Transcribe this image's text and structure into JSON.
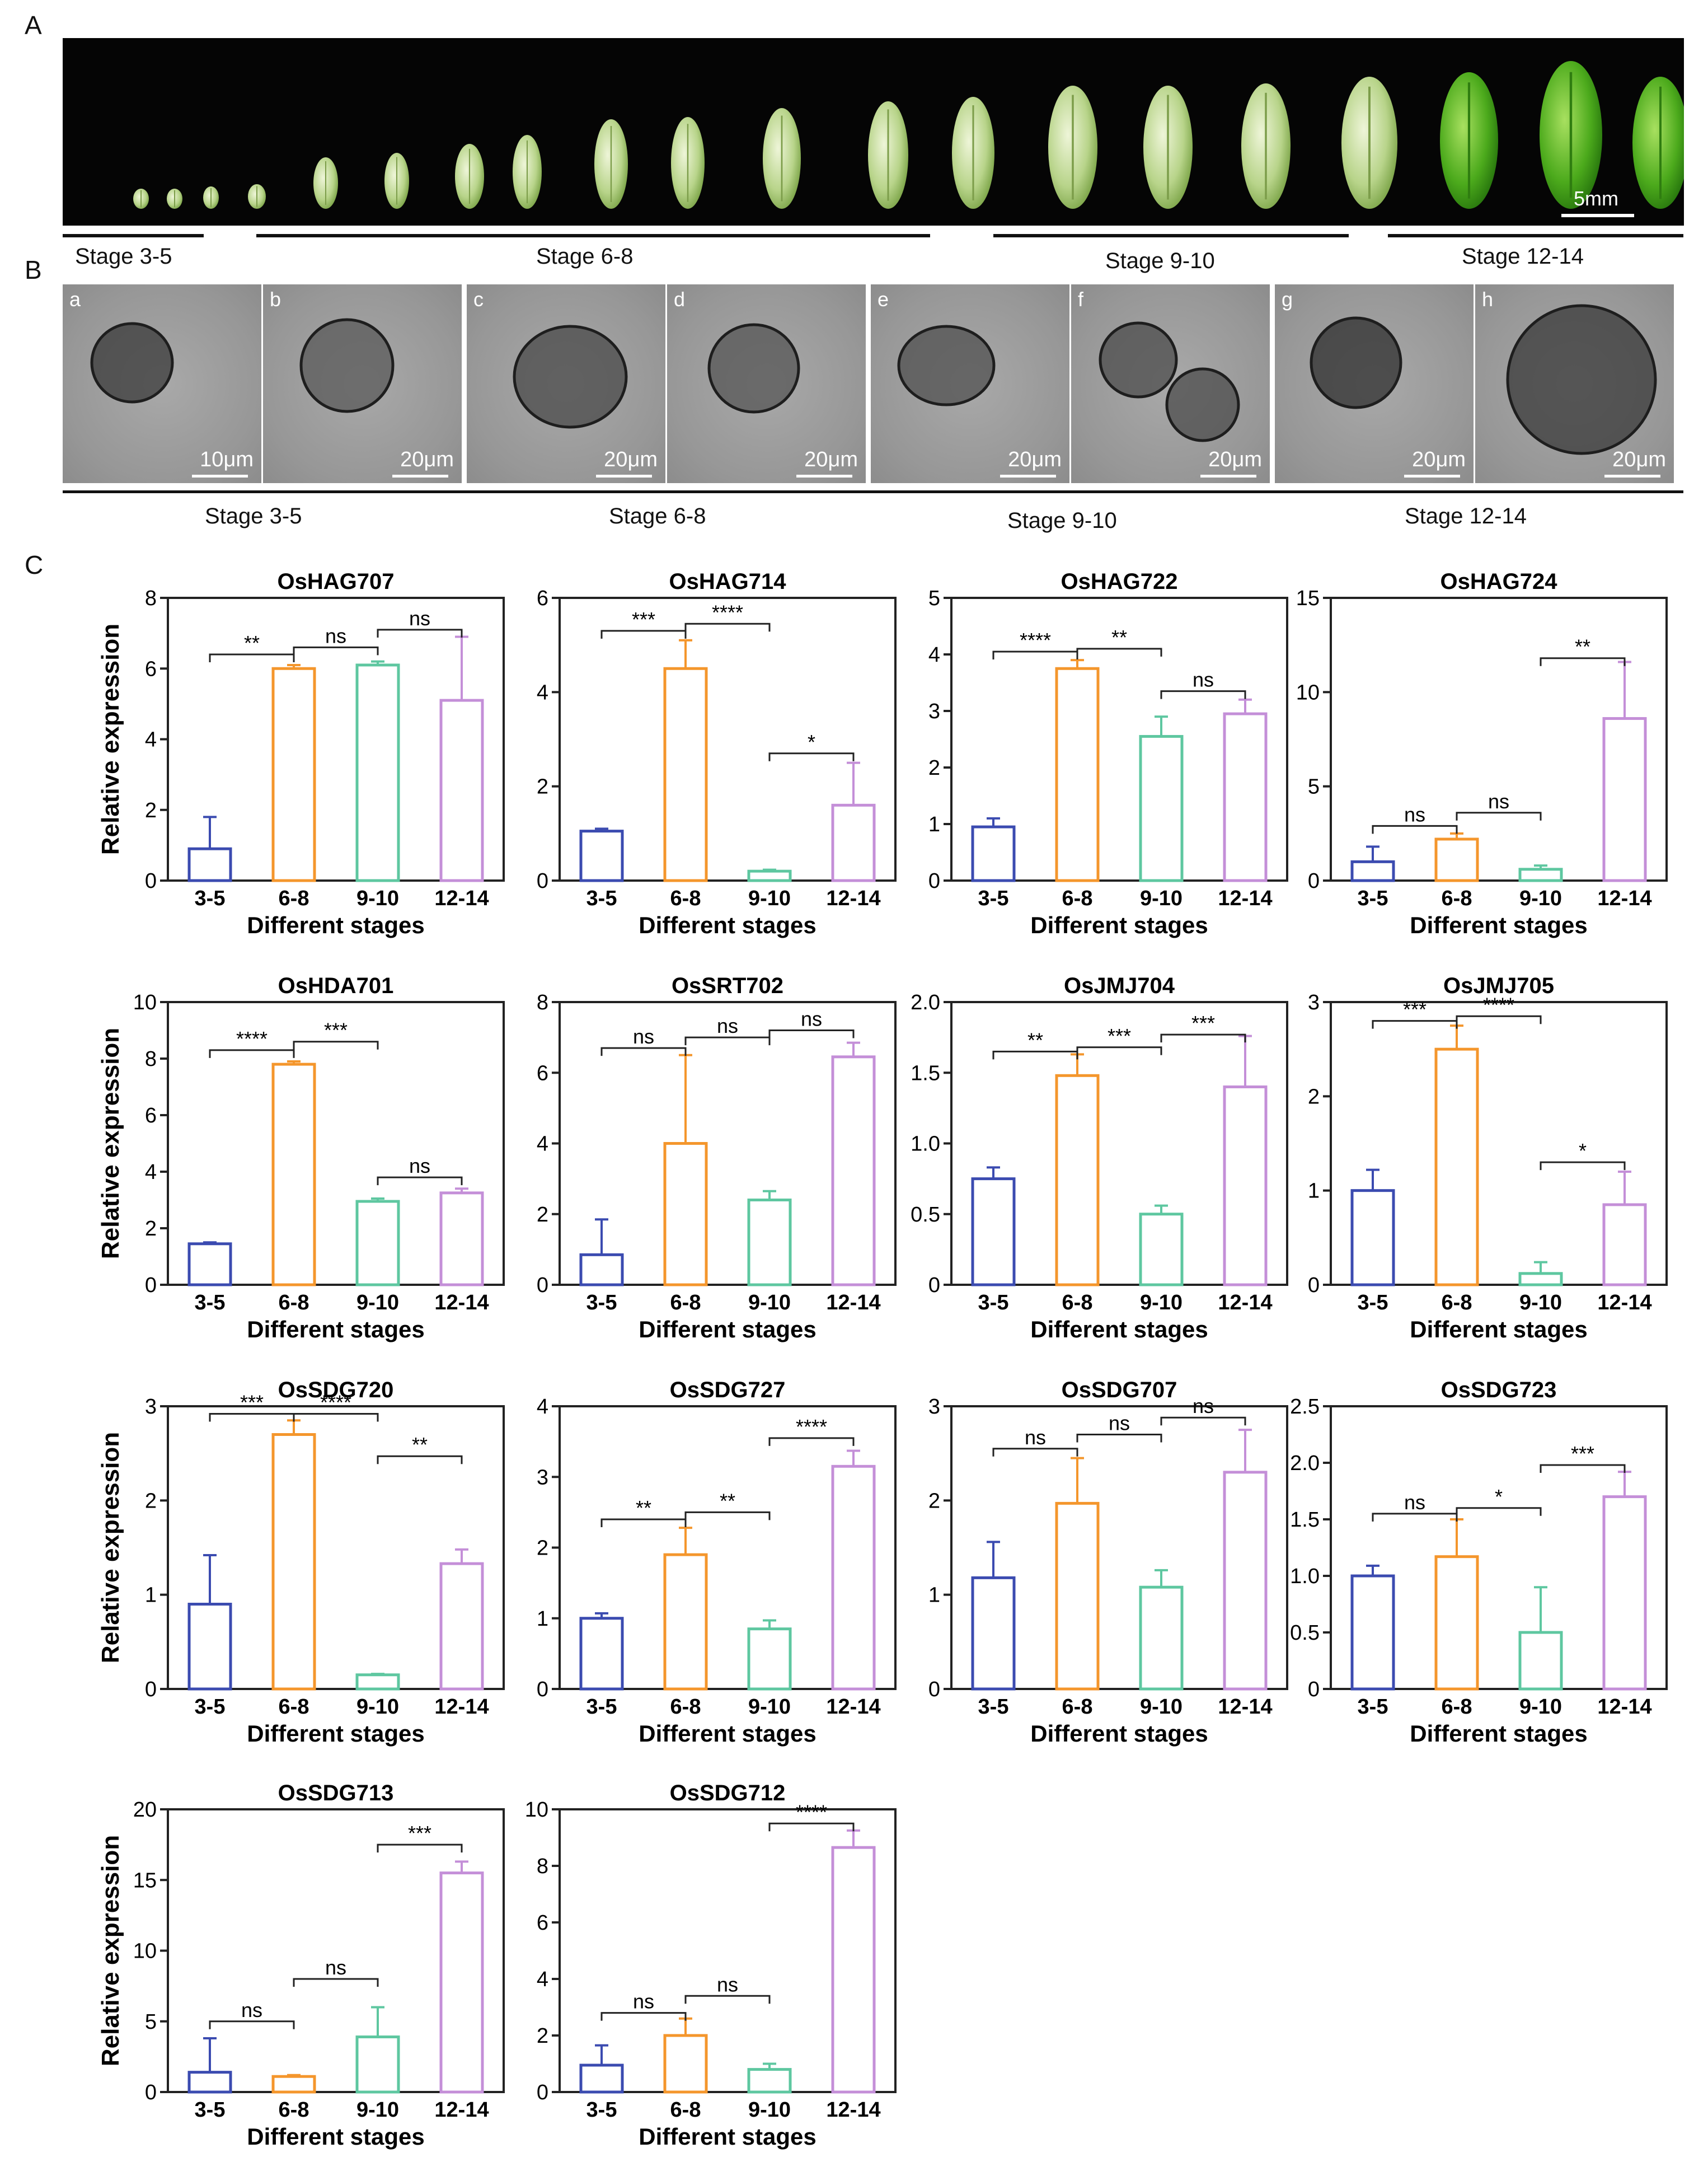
{
  "panels": {
    "a": "A",
    "b": "B",
    "c": "C"
  },
  "strip": {
    "scale_label": "5mm",
    "stage_labels": [
      "Stage 3-5",
      "Stage 6-8",
      "Stage 9-10",
      "Stage 12-14"
    ]
  },
  "micrographs": {
    "items": [
      {
        "letter": "a",
        "scale": "10μm"
      },
      {
        "letter": "b",
        "scale": "20μm"
      },
      {
        "letter": "c",
        "scale": "20μm"
      },
      {
        "letter": "d",
        "scale": "20μm"
      },
      {
        "letter": "e",
        "scale": "20μm"
      },
      {
        "letter": "f",
        "scale": "20μm"
      },
      {
        "letter": "g",
        "scale": "20μm"
      },
      {
        "letter": "h",
        "scale": "20μm"
      }
    ],
    "stage_labels": [
      "Stage 3-5",
      "Stage 6-8",
      "Stage 9-10",
      "Stage 12-14"
    ]
  },
  "colors": {
    "s1": "#3b4bb0",
    "s2": "#f4962c",
    "s3": "#5ec7a0",
    "s4": "#c48fd8"
  },
  "chart_data": [
    {
      "type": "bar",
      "title": "OsHAG707",
      "categories": [
        "3-5",
        "6-8",
        "9-10",
        "12-14"
      ],
      "values": [
        0.9,
        6.0,
        6.1,
        5.1
      ],
      "errors": [
        0.9,
        0.1,
        0.1,
        1.8
      ],
      "ylim": [
        0,
        8
      ],
      "yticks": [
        "0",
        "2",
        "4",
        "6",
        "8"
      ],
      "xlabel": "Different stages",
      "ylabel": "Relative expression",
      "significance": [
        {
          "from": 0,
          "to": 1,
          "label": "**",
          "y": 6.4
        },
        {
          "from": 1,
          "to": 2,
          "label": "ns",
          "y": 6.6
        },
        {
          "from": 2,
          "to": 3,
          "label": "ns",
          "y": 7.1
        }
      ]
    },
    {
      "type": "bar",
      "title": "OsHAG714",
      "categories": [
        "3-5",
        "6-8",
        "9-10",
        "12-14"
      ],
      "values": [
        1.05,
        4.5,
        0.2,
        1.6
      ],
      "errors": [
        0.05,
        0.6,
        0.03,
        0.9
      ],
      "ylim": [
        0,
        6
      ],
      "yticks": [
        "0",
        "2",
        "4",
        "6"
      ],
      "xlabel": "Different stages",
      "ylabel": "",
      "significance": [
        {
          "from": 0,
          "to": 1,
          "label": "***",
          "y": 5.3
        },
        {
          "from": 1,
          "to": 2,
          "label": "****",
          "y": 5.45
        },
        {
          "from": 2,
          "to": 3,
          "label": "*",
          "y": 2.7
        }
      ]
    },
    {
      "type": "bar",
      "title": "OsHAG722",
      "categories": [
        "3-5",
        "6-8",
        "9-10",
        "12-14"
      ],
      "values": [
        0.95,
        3.75,
        2.55,
        2.95
      ],
      "errors": [
        0.15,
        0.15,
        0.35,
        0.25
      ],
      "ylim": [
        0,
        5
      ],
      "yticks": [
        "0",
        "1",
        "2",
        "3",
        "4",
        "5"
      ],
      "xlabel": "Different stages",
      "ylabel": "",
      "significance": [
        {
          "from": 0,
          "to": 1,
          "label": "****",
          "y": 4.05
        },
        {
          "from": 1,
          "to": 2,
          "label": "**",
          "y": 4.1
        },
        {
          "from": 2,
          "to": 3,
          "label": "ns",
          "y": 3.35
        }
      ]
    },
    {
      "type": "bar",
      "title": "OsHAG724",
      "categories": [
        "3-5",
        "6-8",
        "9-10",
        "12-14"
      ],
      "values": [
        1.0,
        2.2,
        0.6,
        8.6
      ],
      "errors": [
        0.8,
        0.3,
        0.2,
        3.0
      ],
      "ylim": [
        0,
        15
      ],
      "yticks": [
        "0",
        "5",
        "10",
        "15"
      ],
      "xlabel": "Different stages",
      "ylabel": "",
      "significance": [
        {
          "from": 0,
          "to": 1,
          "label": "ns",
          "y": 2.9
        },
        {
          "from": 1,
          "to": 2,
          "label": "ns",
          "y": 3.6
        },
        {
          "from": 2,
          "to": 3,
          "label": "**",
          "y": 11.8
        }
      ]
    },
    {
      "type": "bar",
      "title": "OsHDA701",
      "categories": [
        "3-5",
        "6-8",
        "9-10",
        "12-14"
      ],
      "values": [
        1.45,
        7.8,
        2.95,
        3.25
      ],
      "errors": [
        0.05,
        0.1,
        0.1,
        0.15
      ],
      "ylim": [
        0,
        10
      ],
      "yticks": [
        "0",
        "2",
        "4",
        "6",
        "8",
        "10"
      ],
      "xlabel": "Different stages",
      "ylabel": "Relative expression",
      "significance": [
        {
          "from": 0,
          "to": 1,
          "label": "****",
          "y": 8.3
        },
        {
          "from": 1,
          "to": 2,
          "label": "***",
          "y": 8.6
        },
        {
          "from": 2,
          "to": 3,
          "label": "ns",
          "y": 3.8
        }
      ]
    },
    {
      "type": "bar",
      "title": "OsSRT702",
      "categories": [
        "3-5",
        "6-8",
        "9-10",
        "12-14"
      ],
      "values": [
        0.85,
        4.0,
        2.4,
        6.45
      ],
      "errors": [
        1.0,
        2.5,
        0.25,
        0.4
      ],
      "ylim": [
        0,
        8
      ],
      "yticks": [
        "0",
        "2",
        "4",
        "6",
        "8"
      ],
      "xlabel": "Different stages",
      "ylabel": "",
      "significance": [
        {
          "from": 0,
          "to": 1,
          "label": "ns",
          "y": 6.7
        },
        {
          "from": 1,
          "to": 2,
          "label": "ns",
          "y": 7.0
        },
        {
          "from": 2,
          "to": 3,
          "label": "ns",
          "y": 7.2
        }
      ]
    },
    {
      "type": "bar",
      "title": "OsJMJ704",
      "categories": [
        "3-5",
        "6-8",
        "9-10",
        "12-14"
      ],
      "values": [
        0.75,
        1.48,
        0.5,
        1.4
      ],
      "errors": [
        0.08,
        0.15,
        0.06,
        0.36
      ],
      "ylim": [
        0,
        2.0
      ],
      "yticks": [
        "0",
        "0.5",
        "1.0",
        "1.5",
        "2.0"
      ],
      "xlabel": "Different stages",
      "ylabel": "",
      "significance": [
        {
          "from": 0,
          "to": 1,
          "label": "**",
          "y": 1.65
        },
        {
          "from": 1,
          "to": 2,
          "label": "***",
          "y": 1.68
        },
        {
          "from": 2,
          "to": 3,
          "label": "***",
          "y": 1.77
        }
      ]
    },
    {
      "type": "bar",
      "title": "OsJMJ705",
      "categories": [
        "3-5",
        "6-8",
        "9-10",
        "12-14"
      ],
      "values": [
        1.0,
        2.5,
        0.12,
        0.85
      ],
      "errors": [
        0.22,
        0.25,
        0.12,
        0.35
      ],
      "ylim": [
        0,
        3
      ],
      "yticks": [
        "0",
        "1",
        "2",
        "3"
      ],
      "xlabel": "Different stages",
      "ylabel": "",
      "significance": [
        {
          "from": 0,
          "to": 1,
          "label": "***",
          "y": 2.8
        },
        {
          "from": 1,
          "to": 2,
          "label": "****",
          "y": 2.85
        },
        {
          "from": 2,
          "to": 3,
          "label": "*",
          "y": 1.3
        }
      ]
    },
    {
      "type": "bar",
      "title": "OsSDG720",
      "categories": [
        "3-5",
        "6-8",
        "9-10",
        "12-14"
      ],
      "values": [
        0.9,
        2.7,
        0.15,
        1.33
      ],
      "errors": [
        0.52,
        0.15,
        0.01,
        0.15
      ],
      "ylim": [
        0,
        3
      ],
      "yticks": [
        "0",
        "1",
        "2",
        "3"
      ],
      "xlabel": "Different stages",
      "ylabel": "Relative expression",
      "significance": [
        {
          "from": 0,
          "to": 1,
          "label": "***",
          "y": 2.92
        },
        {
          "from": 1,
          "to": 2,
          "label": "****",
          "y": 2.92
        },
        {
          "from": 2,
          "to": 3,
          "label": "**",
          "y": 2.47
        }
      ]
    },
    {
      "type": "bar",
      "title": "OsSDG727",
      "categories": [
        "3-5",
        "6-8",
        "9-10",
        "12-14"
      ],
      "values": [
        1.0,
        1.9,
        0.85,
        3.15
      ],
      "errors": [
        0.07,
        0.38,
        0.12,
        0.22
      ],
      "ylim": [
        0,
        4
      ],
      "yticks": [
        "0",
        "1",
        "2",
        "3",
        "4"
      ],
      "xlabel": "Different stages",
      "ylabel": "",
      "significance": [
        {
          "from": 0,
          "to": 1,
          "label": "**",
          "y": 2.4
        },
        {
          "from": 1,
          "to": 2,
          "label": "**",
          "y": 2.5
        },
        {
          "from": 2,
          "to": 3,
          "label": "****",
          "y": 3.55
        }
      ]
    },
    {
      "type": "bar",
      "title": "OsSDG707",
      "categories": [
        "3-5",
        "6-8",
        "9-10",
        "12-14"
      ],
      "values": [
        1.18,
        1.97,
        1.08,
        2.3
      ],
      "errors": [
        0.38,
        0.48,
        0.18,
        0.45
      ],
      "ylim": [
        0,
        3
      ],
      "yticks": [
        "0",
        "1",
        "2",
        "3"
      ],
      "xlabel": "Different stages",
      "ylabel": "",
      "significance": [
        {
          "from": 0,
          "to": 1,
          "label": "ns",
          "y": 2.55
        },
        {
          "from": 1,
          "to": 2,
          "label": "ns",
          "y": 2.7
        },
        {
          "from": 2,
          "to": 3,
          "label": "ns",
          "y": 2.88
        }
      ]
    },
    {
      "type": "bar",
      "title": "OsSDG723",
      "categories": [
        "3-5",
        "6-8",
        "9-10",
        "12-14"
      ],
      "values": [
        1.0,
        1.17,
        0.5,
        1.7
      ],
      "errors": [
        0.09,
        0.33,
        0.4,
        0.22
      ],
      "ylim": [
        0,
        2.5
      ],
      "yticks": [
        "0",
        "0.5",
        "1.0",
        "1.5",
        "2.0",
        "2.5"
      ],
      "xlabel": "Different stages",
      "ylabel": "",
      "significance": [
        {
          "from": 0,
          "to": 1,
          "label": "ns",
          "y": 1.55
        },
        {
          "from": 1,
          "to": 2,
          "label": "*",
          "y": 1.6
        },
        {
          "from": 2,
          "to": 3,
          "label": "***",
          "y": 1.98
        }
      ]
    },
    {
      "type": "bar",
      "title": "OsSDG713",
      "categories": [
        "3-5",
        "6-8",
        "9-10",
        "12-14"
      ],
      "values": [
        1.4,
        1.1,
        3.9,
        15.5
      ],
      "errors": [
        2.4,
        0.1,
        2.1,
        0.8
      ],
      "ylim": [
        0,
        20
      ],
      "yticks": [
        "0",
        "5",
        "10",
        "15",
        "20"
      ],
      "xlabel": "Different stages",
      "ylabel": "Relative expression",
      "significance": [
        {
          "from": 0,
          "to": 1,
          "label": "ns",
          "y": 5.0
        },
        {
          "from": 1,
          "to": 2,
          "label": "ns",
          "y": 8.0
        },
        {
          "from": 2,
          "to": 3,
          "label": "***",
          "y": 17.5
        }
      ]
    },
    {
      "type": "bar",
      "title": "OsSDG712",
      "categories": [
        "3-5",
        "6-8",
        "9-10",
        "12-14"
      ],
      "values": [
        0.95,
        2.0,
        0.8,
        8.65
      ],
      "errors": [
        0.7,
        0.6,
        0.2,
        0.6
      ],
      "ylim": [
        0,
        10
      ],
      "yticks": [
        "0",
        "2",
        "4",
        "6",
        "8",
        "10"
      ],
      "xlabel": "Different stages",
      "ylabel": "",
      "significance": [
        {
          "from": 0,
          "to": 1,
          "label": "ns",
          "y": 2.8
        },
        {
          "from": 1,
          "to": 2,
          "label": "ns",
          "y": 3.4
        },
        {
          "from": 2,
          "to": 3,
          "label": "****",
          "y": 9.5
        }
      ]
    }
  ]
}
